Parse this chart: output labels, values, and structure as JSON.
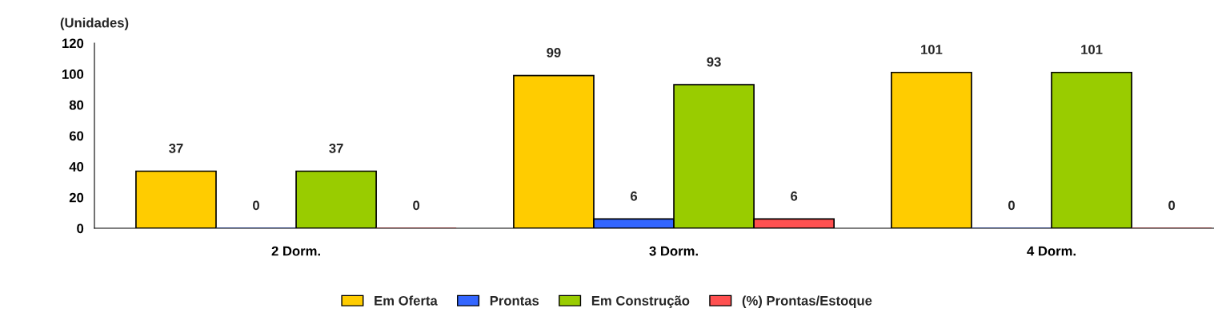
{
  "chart_data": {
    "type": "bar",
    "ylabel": "(Unidades)",
    "categories": [
      "2 Dorm.",
      "3 Dorm.",
      "4 Dorm."
    ],
    "series": [
      {
        "name": "Em Oferta",
        "color": "#ffcc00",
        "values": [
          37,
          99,
          101
        ]
      },
      {
        "name": "Prontas",
        "color": "#3366ff",
        "values": [
          0,
          6,
          0
        ]
      },
      {
        "name": "Em Construção",
        "color": "#99cc00",
        "values": [
          37,
          93,
          101
        ]
      },
      {
        "name": "(%) Prontas/Estoque",
        "color": "#ff5050",
        "values": [
          0,
          6,
          0
        ]
      }
    ],
    "ylim": [
      0,
      120
    ],
    "yticks": [
      0,
      20,
      40,
      60,
      80,
      100,
      120
    ],
    "data_labels": true,
    "legend": "bottom",
    "grid": false
  }
}
